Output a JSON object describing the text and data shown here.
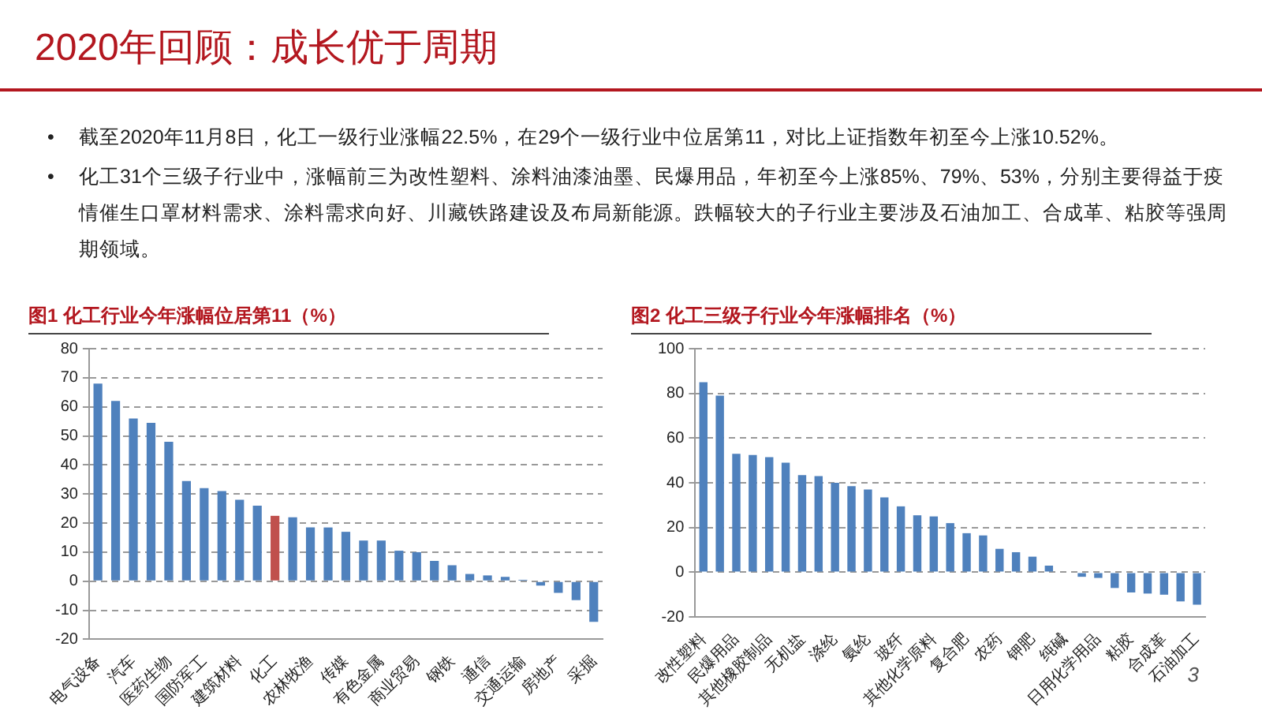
{
  "chart_data": [
    {
      "type": "other",
      "title": "2020年回顾：成长优于周期",
      "annotations": [
        "•\t截至2020年11月8日，化工一级行业涨幅22.5%，在29个一级行业中位居第11，对比上证指数年初至今上涨10.52%。",
        "•\t化工31个三级子行业中，涨幅前三为改性塑料、涂料油漆油墨、民爆用品，年初至今上涨85%、79%、53%，分别主要得益于疫情催生口罩材料需求、涂料需求向好、川藏铁路建设及布局新能源。跌幅较大的子行业主要涉及石油加工、合成革、粘胶等强周期领域。",
        "3"
      ]
    },
    {
      "type": "bar",
      "title": "图1 化工行业今年涨幅位居第11（%）",
      "categories": [
        "电气设备",
        null,
        "汽车",
        null,
        "医药生物",
        null,
        "国防军工",
        null,
        "建筑材料",
        null,
        "化工",
        null,
        "农林牧渔",
        null,
        "传媒",
        null,
        "有色金属",
        null,
        "商业贸易",
        null,
        "钢铁",
        null,
        "通信",
        null,
        "交通运输",
        null,
        "房地产",
        null,
        "采掘"
      ],
      "values": [
        68,
        62,
        56,
        54.5,
        48,
        34.5,
        32,
        31,
        28,
        26,
        22.5,
        22,
        18.5,
        18.5,
        17,
        14,
        14,
        10.5,
        10,
        7,
        5.5,
        2.5,
        2,
        1.5,
        0.5,
        -1.5,
        -4,
        -6.5,
        -14
      ],
      "colors": [
        "#4f81bd",
        "#4f81bd",
        "#4f81bd",
        "#4f81bd",
        "#4f81bd",
        "#4f81bd",
        "#4f81bd",
        "#4f81bd",
        "#4f81bd",
        "#4f81bd",
        "#c0504d",
        "#4f81bd",
        "#4f81bd",
        "#4f81bd",
        "#4f81bd",
        "#4f81bd",
        "#4f81bd",
        "#4f81bd",
        "#4f81bd",
        "#4f81bd",
        "#4f81bd",
        "#4f81bd",
        "#4f81bd",
        "#4f81bd",
        "#4f81bd",
        "#4f81bd",
        "#4f81bd",
        "#4f81bd",
        "#4f81bd"
      ],
      "ylim": [
        -20,
        80
      ],
      "yticks": [
        -20,
        -10,
        0,
        10,
        20,
        30,
        40,
        50,
        60,
        70,
        80
      ],
      "grid": "y"
    },
    {
      "type": "bar",
      "title": "图2 化工三级子行业今年涨幅排名（%）",
      "categories": [
        "改性塑料",
        null,
        "民爆用品",
        null,
        "其他橡胶制品",
        null,
        "无机盐",
        null,
        "涤纶",
        null,
        "氨纶",
        null,
        "玻纤",
        null,
        "其他化学原料",
        null,
        "复合肥",
        null,
        "农药",
        null,
        "钾肥",
        null,
        "纯碱",
        null,
        "日用化学用品",
        null,
        "粘胶",
        null,
        "合成革",
        null,
        "石油加工"
      ],
      "values": [
        85,
        79,
        53,
        52.5,
        51.5,
        49,
        43.5,
        43,
        40,
        38.5,
        37,
        33.5,
        29.5,
        25.5,
        25,
        22,
        17.5,
        16.5,
        10.5,
        9,
        7,
        3,
        0,
        -2,
        -2.5,
        -7,
        -9,
        -9.5,
        -10,
        -13,
        -14.5
      ],
      "color": "#4f81bd",
      "ylim": [
        -20,
        100
      ],
      "yticks": [
        -20,
        0,
        20,
        40,
        60,
        80,
        100
      ],
      "grid": "y"
    }
  ]
}
